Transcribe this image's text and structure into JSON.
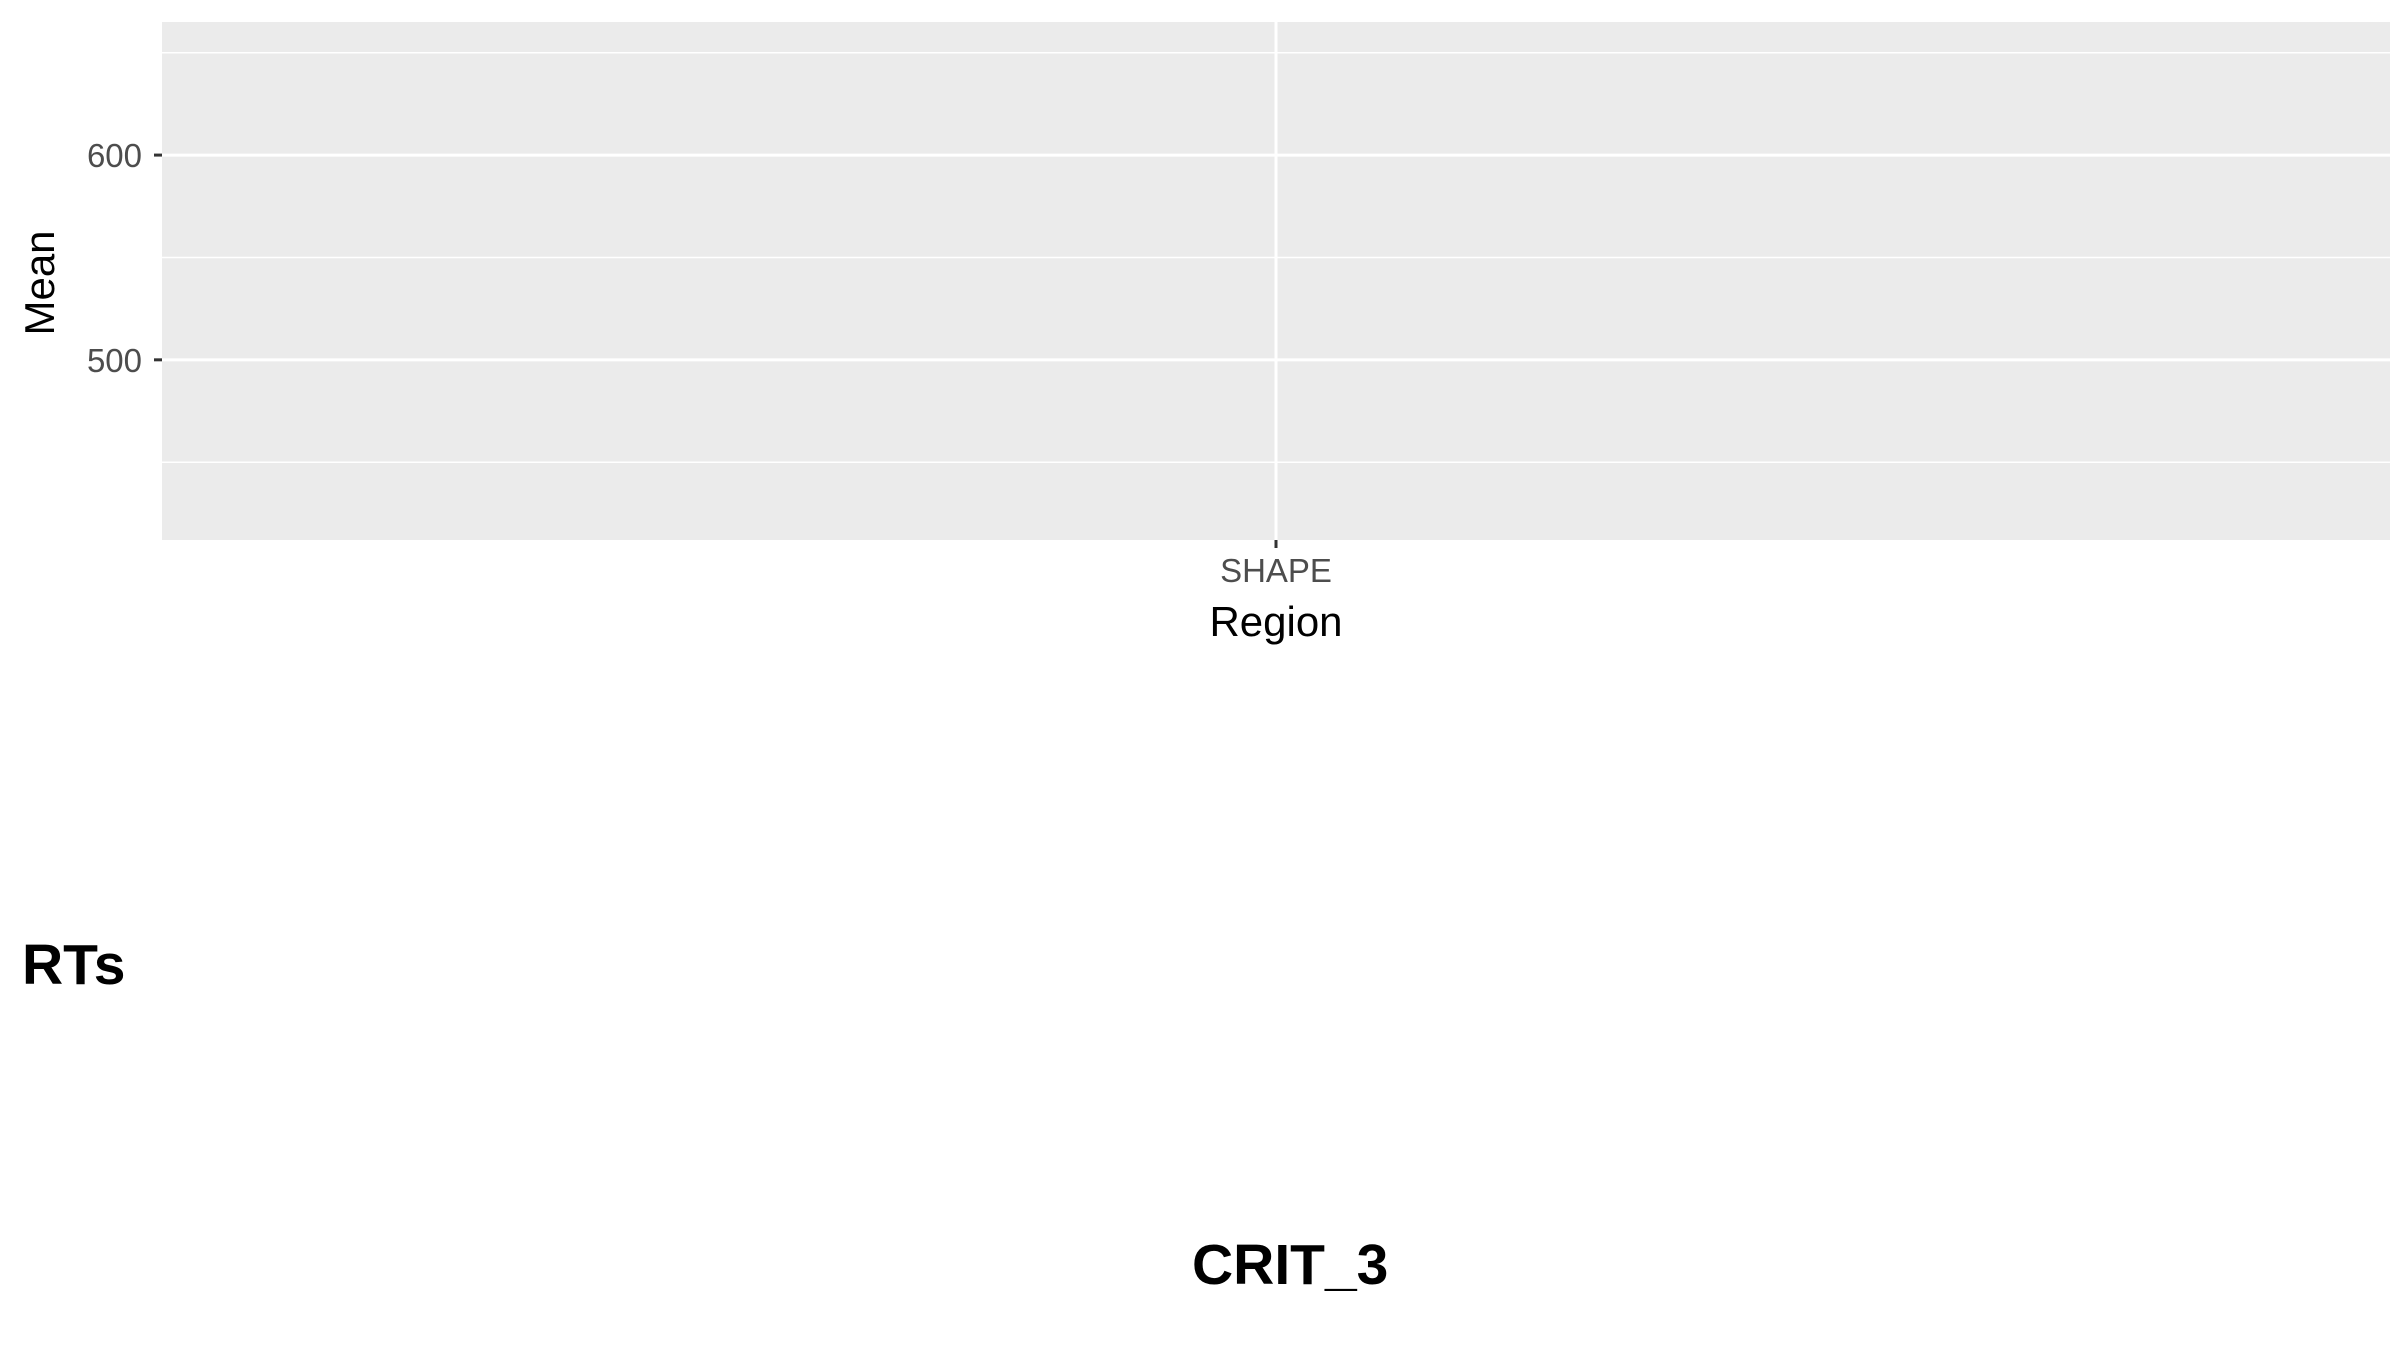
{
  "chart_data": {
    "type": "bar",
    "categories": [
      "SHAPE"
    ],
    "series": [],
    "xlabel": "Region",
    "ylabel": "Mean",
    "y_ticks": [
      500,
      600
    ],
    "ylim": [
      412,
      665
    ],
    "grid": true,
    "legend": "none"
  },
  "panels": {
    "left_label": "RTs",
    "bottom_label": "CRIT_3"
  },
  "colors": {
    "panel_background": "#ebebeb",
    "grid_line": "#ffffff",
    "tick_mark": "#333333",
    "tick_text": "#4d4d4d",
    "title_text": "#000000"
  }
}
